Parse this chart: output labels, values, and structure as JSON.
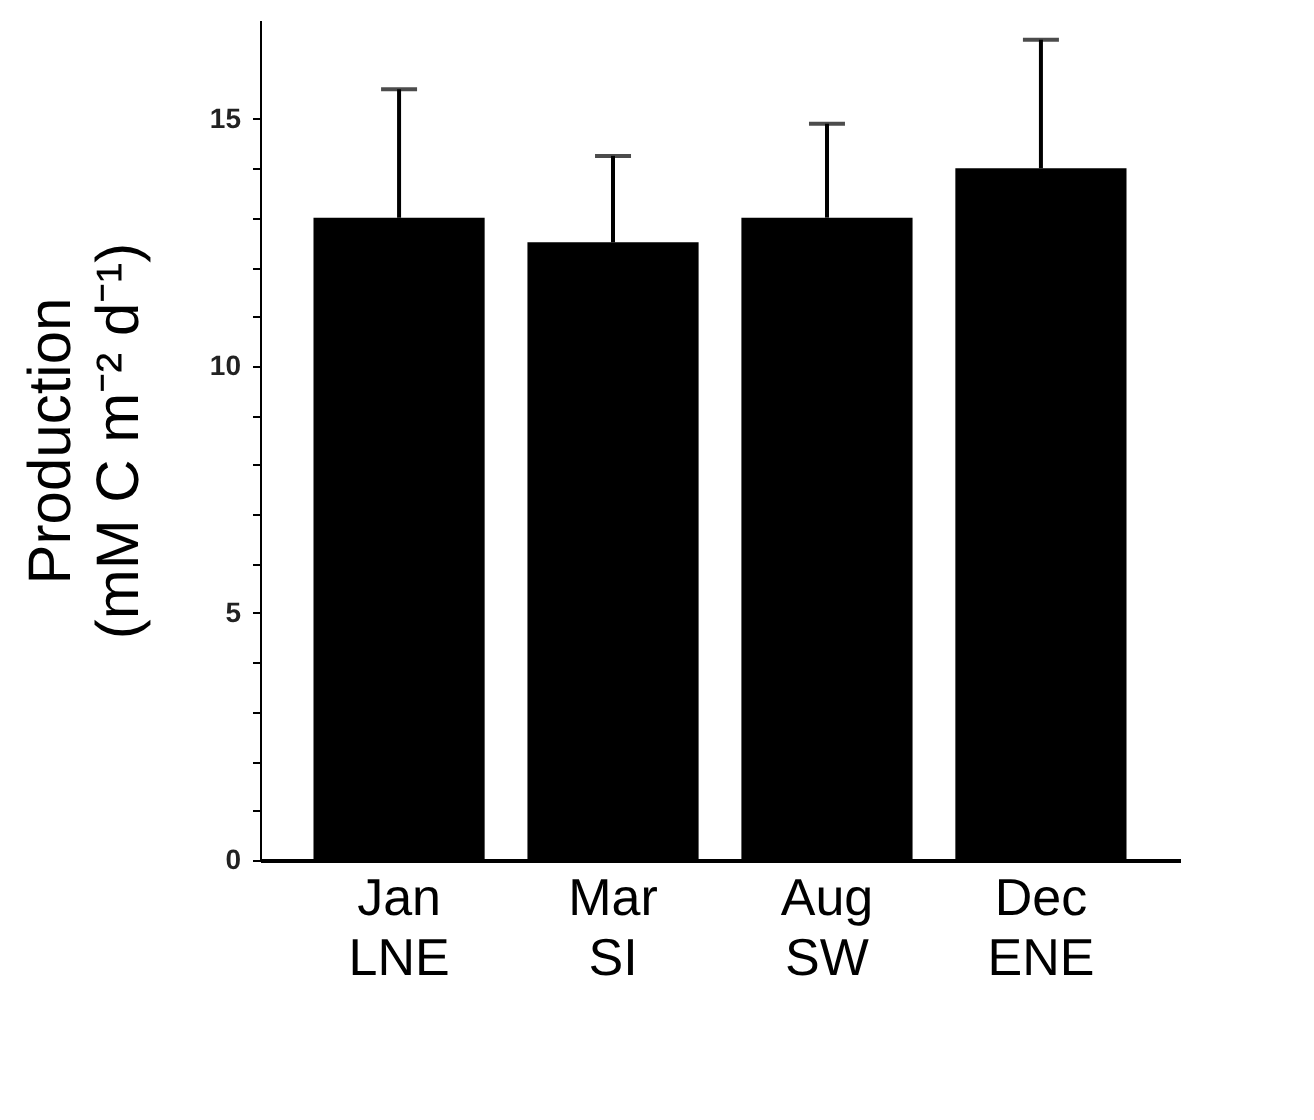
{
  "chart_data": {
    "type": "bar",
    "ylabel": "Production\n(mM C m⁻² d⁻¹)",
    "categories": [
      "Jan\nLNE",
      "Mar\nSI",
      "Aug\nSW",
      "Dec\nENE"
    ],
    "values": [
      13,
      12.5,
      13,
      14
    ],
    "errors": [
      [
        13,
        15.6
      ],
      [
        12.5,
        14.25
      ],
      [
        13,
        14.9
      ],
      [
        14,
        16.6
      ]
    ],
    "color": "#000000",
    "ylim": [
      0,
      17
    ],
    "yticks": [
      0,
      {
        "value": 1,
        "label": null
      },
      {
        "value": 2,
        "label": null
      },
      {
        "value": 3,
        "label": null
      },
      {
        "value": 4,
        "label": null
      },
      5,
      {
        "value": 6,
        "label": null
      },
      {
        "value": 7,
        "label": null
      },
      {
        "value": 8,
        "label": null
      },
      {
        "value": 9,
        "label": null
      },
      10,
      {
        "value": 11,
        "label": null
      },
      {
        "value": 12,
        "label": null
      },
      {
        "value": 13,
        "label": null
      },
      {
        "value": 14,
        "label": null
      },
      15
    ],
    "grid": false
  }
}
